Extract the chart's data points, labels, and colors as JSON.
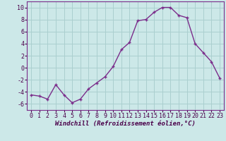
{
  "x": [
    0,
    1,
    2,
    3,
    4,
    5,
    6,
    7,
    8,
    9,
    10,
    11,
    12,
    13,
    14,
    15,
    16,
    17,
    18,
    19,
    20,
    21,
    22,
    23
  ],
  "y": [
    -4.5,
    -4.7,
    -5.2,
    -2.8,
    -4.5,
    -5.8,
    -5.2,
    -3.5,
    -2.5,
    -1.5,
    0.2,
    3.0,
    4.2,
    7.8,
    8.0,
    9.2,
    10.0,
    10.0,
    8.7,
    8.3,
    4.0,
    2.5,
    1.0,
    -1.7
  ],
  "line_color": "#7B2D8B",
  "marker": "+",
  "marker_color": "#7B2D8B",
  "bg_color": "#cce8e8",
  "grid_color": "#aacfcf",
  "xlabel": "Windchill (Refroidissement éolien,°C)",
  "xlim": [
    -0.5,
    23.5
  ],
  "ylim": [
    -7,
    11
  ],
  "yticks": [
    -6,
    -4,
    -2,
    0,
    2,
    4,
    6,
    8,
    10
  ],
  "xticks": [
    0,
    1,
    2,
    3,
    4,
    5,
    6,
    7,
    8,
    9,
    10,
    11,
    12,
    13,
    14,
    15,
    16,
    17,
    18,
    19,
    20,
    21,
    22,
    23
  ],
  "xlabel_fontsize": 6.5,
  "tick_fontsize": 6.0,
  "line_width": 1.0,
  "marker_size": 3.5
}
